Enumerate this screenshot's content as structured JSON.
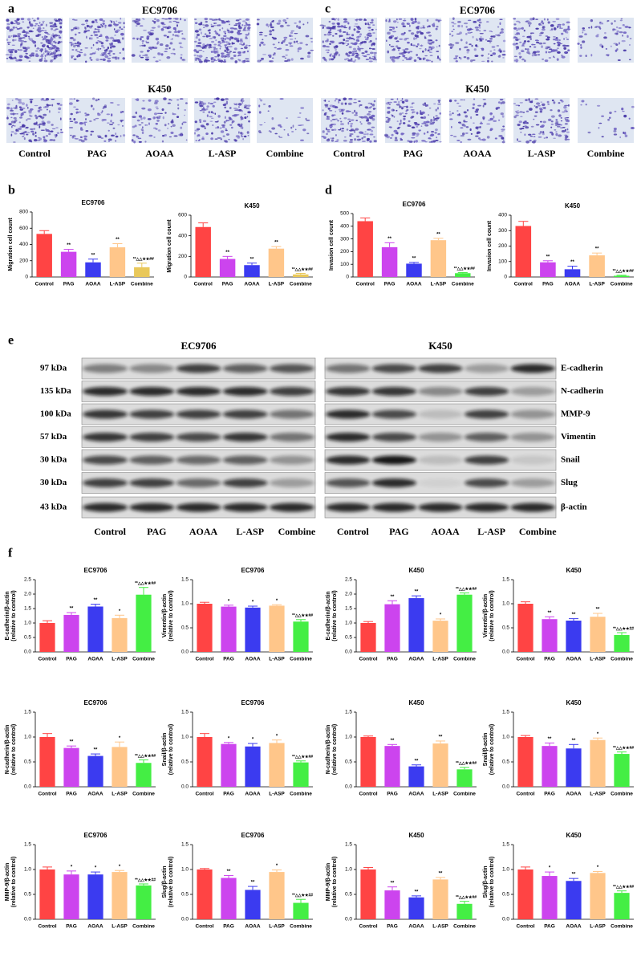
{
  "letters": [
    "a",
    "b",
    "c",
    "d",
    "e",
    "f"
  ],
  "image_panels": [
    {
      "titles": [
        "EC9706",
        "K450"
      ],
      "labels": [
        "Control",
        "PAG",
        "AOAA",
        "L-ASP",
        "Combine"
      ]
    },
    {
      "titles": [
        "EC9706",
        "K450"
      ],
      "labels": [
        "Control",
        "PAG",
        "AOAA",
        "L-ASP",
        "Combine"
      ]
    }
  ],
  "blot": {
    "titles": [
      "EC9706",
      "K450"
    ],
    "markers": [
      "97 kDa",
      "135 kDa",
      "100 kDa",
      "57 kDa",
      "30 kDa",
      "30 kDa",
      "43 kDa"
    ],
    "proteins": [
      "E-cadherin",
      "N-cadherin",
      "MMP-9",
      "Vimentin",
      "Snail",
      "Slug",
      "β-actin"
    ],
    "lanes": [
      [
        "Control",
        "PAG",
        "AOAA",
        "L-ASP",
        "Combine"
      ],
      [
        "Control",
        "PAG",
        "AOAA",
        "L-ASP",
        "Combine"
      ]
    ]
  },
  "chart_data": [
    {
      "type": "bar",
      "title": "EC9706",
      "ylabel": [
        "Migration cell count"
      ],
      "categories": [
        "Control",
        "PAG",
        "AOAA",
        "L-ASP",
        "Combine"
      ],
      "colors": [
        "#ff4444",
        "#cc44ee",
        "#3b3bf0",
        "#ffc68a",
        "#e9c85a"
      ],
      "values": [
        530,
        310,
        180,
        365,
        120
      ],
      "errors": [
        40,
        30,
        40,
        45,
        50
      ],
      "annotations": [
        null,
        "**",
        "**",
        "**",
        "**△△★★##"
      ],
      "ylim": [
        0,
        800
      ],
      "yticks": [
        0,
        200,
        400,
        600,
        800
      ]
    },
    {
      "type": "bar",
      "title": "K450",
      "ylabel": [
        "Migration cell count"
      ],
      "categories": [
        "Control",
        "PAG",
        "AOAA",
        "L-ASP",
        "Combine"
      ],
      "colors": [
        "#ff4444",
        "#cc44ee",
        "#3b3bf0",
        "#ffc68a",
        "#e9c85a"
      ],
      "values": [
        485,
        175,
        115,
        275,
        25
      ],
      "errors": [
        40,
        25,
        20,
        20,
        10
      ],
      "annotations": [
        null,
        "**",
        "**",
        "**",
        "**△△★★##"
      ],
      "ylim": [
        0,
        600
      ],
      "yticks": [
        0,
        200,
        400,
        600
      ]
    },
    {
      "type": "bar",
      "title": "EC9706",
      "ylabel": [
        "Invasion cell count"
      ],
      "categories": [
        "Control",
        "PAG",
        "AOAA",
        "L-ASP",
        "Combine"
      ],
      "colors": [
        "#ff4444",
        "#cc44ee",
        "#3b3bf0",
        "#ffc68a",
        "#44ee44"
      ],
      "values": [
        440,
        235,
        105,
        290,
        30
      ],
      "errors": [
        25,
        35,
        10,
        15,
        5
      ],
      "annotations": [
        null,
        "**",
        "**",
        "**",
        "**△△★★##"
      ],
      "ylim": [
        0,
        500
      ],
      "yticks": [
        0,
        100,
        200,
        300,
        400,
        500
      ]
    },
    {
      "type": "bar",
      "title": "K450",
      "ylabel": [
        "Invasion cell count"
      ],
      "categories": [
        "Control",
        "PAG",
        "AOAA",
        "L-ASP",
        "Combine"
      ],
      "colors": [
        "#ff4444",
        "#cc44ee",
        "#3b3bf0",
        "#ffc68a",
        "#44ee44"
      ],
      "values": [
        330,
        95,
        50,
        140,
        8
      ],
      "errors": [
        30,
        10,
        20,
        15,
        3
      ],
      "annotations": [
        null,
        "**",
        "**",
        "**",
        "**△△★★##"
      ],
      "ylim": [
        0,
        400
      ],
      "yticks": [
        0,
        100,
        200,
        300,
        400
      ]
    },
    {
      "type": "bar",
      "title": "EC9706",
      "ylabel": [
        "E-cadherin/β-actin",
        "(relative to control)"
      ],
      "categories": [
        "Control",
        "PAG",
        "AOAA",
        "L-ASP",
        "Combine"
      ],
      "colors": [
        "#ff4444",
        "#cc44ee",
        "#3b3bf0",
        "#ffc68a",
        "#44ee44"
      ],
      "values": [
        1.0,
        1.28,
        1.57,
        1.17,
        1.98
      ],
      "errors": [
        0.08,
        0.08,
        0.08,
        0.1,
        0.25
      ],
      "annotations": [
        null,
        "**",
        "**",
        "*",
        "**△△★★##"
      ],
      "ylim": [
        0,
        2.5
      ],
      "yticks": [
        {
          "value": 0,
          "label": "0.0"
        },
        0.5,
        {
          "value": 1,
          "label": "1.0"
        },
        1.5,
        {
          "value": 2,
          "label": "2.0"
        },
        2.5
      ]
    },
    {
      "type": "bar",
      "title": "EC9706",
      "ylabel": [
        "Vimentin/β-actin",
        "(relative to control)"
      ],
      "categories": [
        "Control",
        "PAG",
        "AOAA",
        "L-ASP",
        "Combine"
      ],
      "colors": [
        "#ff4444",
        "#cc44ee",
        "#3b3bf0",
        "#ffc68a",
        "#44ee44"
      ],
      "values": [
        1.0,
        0.94,
        0.92,
        0.96,
        0.63
      ],
      "errors": [
        0.03,
        0.03,
        0.03,
        0.02,
        0.04
      ],
      "annotations": [
        null,
        "*",
        "*",
        "*",
        "**△△★★##"
      ],
      "ylim": [
        0,
        1.5
      ],
      "yticks": [
        {
          "value": 0,
          "label": "0.0"
        },
        0.5,
        {
          "value": 1,
          "label": "1.0"
        },
        1.5
      ]
    },
    {
      "type": "bar",
      "title": "K450",
      "ylabel": [
        "E-cadherin/β-actin",
        "(relative to control)"
      ],
      "categories": [
        "Control",
        "PAG",
        "AOAA",
        "L-ASP",
        "Combine"
      ],
      "colors": [
        "#ff4444",
        "#cc44ee",
        "#3b3bf0",
        "#ffc68a",
        "#44ee44"
      ],
      "values": [
        1.0,
        1.65,
        1.86,
        1.08,
        1.98
      ],
      "errors": [
        0.05,
        0.12,
        0.08,
        0.06,
        0.06
      ],
      "annotations": [
        null,
        "**",
        "**",
        "*",
        "**△△★★##"
      ],
      "ylim": [
        0,
        2.5
      ],
      "yticks": [
        {
          "value": 0,
          "label": "0.0"
        },
        0.5,
        {
          "value": 1,
          "label": "1.0"
        },
        1.5,
        {
          "value": 2,
          "label": "2.0"
        },
        2.5
      ]
    },
    {
      "type": "bar",
      "title": "K450",
      "ylabel": [
        "Vimentin/β-actin",
        "(relative to control)"
      ],
      "categories": [
        "Control",
        "PAG",
        "AOAA",
        "L-ASP",
        "Combine"
      ],
      "colors": [
        "#ff4444",
        "#cc44ee",
        "#3b3bf0",
        "#ffc68a",
        "#44ee44"
      ],
      "values": [
        1.0,
        0.68,
        0.65,
        0.73,
        0.35
      ],
      "errors": [
        0.04,
        0.05,
        0.04,
        0.07,
        0.05
      ],
      "annotations": [
        null,
        "**",
        "**",
        "**",
        "**△△★★##"
      ],
      "ylim": [
        0,
        1.5
      ],
      "yticks": [
        {
          "value": 0,
          "label": "0.0"
        },
        0.5,
        {
          "value": 1,
          "label": "1.0"
        },
        1.5
      ]
    },
    {
      "type": "bar",
      "title": "EC9706",
      "ylabel": [
        "N-cadherin/β-actin",
        "(relative to control)"
      ],
      "categories": [
        "Control",
        "PAG",
        "AOAA",
        "L-ASP",
        "Combine"
      ],
      "colors": [
        "#ff4444",
        "#cc44ee",
        "#3b3bf0",
        "#ffc68a",
        "#44ee44"
      ],
      "values": [
        1.0,
        0.78,
        0.62,
        0.8,
        0.48
      ],
      "errors": [
        0.07,
        0.04,
        0.04,
        0.1,
        0.06
      ],
      "annotations": [
        null,
        "**",
        "**",
        "*",
        "**△△★★##"
      ],
      "ylim": [
        0,
        1.5
      ],
      "yticks": [
        {
          "value": 0,
          "label": "0.0"
        },
        0.5,
        {
          "value": 1,
          "label": "1.0"
        },
        1.5
      ]
    },
    {
      "type": "bar",
      "title": "EC9706",
      "ylabel": [
        "Snail/β-actin",
        "(relative to control)"
      ],
      "categories": [
        "Control",
        "PAG",
        "AOAA",
        "L-ASP",
        "Combine"
      ],
      "colors": [
        "#ff4444",
        "#cc44ee",
        "#3b3bf0",
        "#ffc68a",
        "#44ee44"
      ],
      "values": [
        1.0,
        0.86,
        0.81,
        0.88,
        0.49
      ],
      "errors": [
        0.07,
        0.03,
        0.06,
        0.06,
        0.03
      ],
      "annotations": [
        null,
        "*",
        "*",
        "*",
        "**△△★★##"
      ],
      "ylim": [
        0,
        1.5
      ],
      "yticks": [
        {
          "value": 0,
          "label": "0.0"
        },
        0.5,
        {
          "value": 1,
          "label": "1.0"
        },
        1.5
      ]
    },
    {
      "type": "bar",
      "title": "K450",
      "ylabel": [
        "N-cadherin/β-actin",
        "(relative to control)"
      ],
      "categories": [
        "Control",
        "PAG",
        "AOAA",
        "L-ASP",
        "Combine"
      ],
      "colors": [
        "#ff4444",
        "#cc44ee",
        "#3b3bf0",
        "#ffc68a",
        "#44ee44"
      ],
      "values": [
        1.0,
        0.82,
        0.41,
        0.87,
        0.35
      ],
      "errors": [
        0.02,
        0.03,
        0.03,
        0.05,
        0.04
      ],
      "annotations": [
        null,
        "**",
        "**",
        "**",
        "**△△★★##"
      ],
      "ylim": [
        0,
        1.5
      ],
      "yticks": [
        {
          "value": 0,
          "label": "0.0"
        },
        0.5,
        {
          "value": 1,
          "label": "1.0"
        },
        1.5
      ]
    },
    {
      "type": "bar",
      "title": "K450",
      "ylabel": [
        "Snail/β-actin",
        "(relative to control)"
      ],
      "categories": [
        "Control",
        "PAG",
        "AOAA",
        "L-ASP",
        "Combine"
      ],
      "colors": [
        "#ff4444",
        "#cc44ee",
        "#3b3bf0",
        "#ffc68a",
        "#44ee44"
      ],
      "values": [
        1.0,
        0.82,
        0.77,
        0.94,
        0.66
      ],
      "errors": [
        0.03,
        0.06,
        0.08,
        0.04,
        0.04
      ],
      "annotations": [
        null,
        "**",
        "**",
        "*",
        "**△△★★##"
      ],
      "ylim": [
        0,
        1.5
      ],
      "yticks": [
        {
          "value": 0,
          "label": "0.0"
        },
        0.5,
        {
          "value": 1,
          "label": "1.0"
        },
        1.5
      ]
    },
    {
      "type": "bar",
      "title": "EC9706",
      "ylabel": [
        "MMP-9/β-actin",
        "(relative to control)"
      ],
      "categories": [
        "Control",
        "PAG",
        "AOAA",
        "L-ASP",
        "Combine"
      ],
      "colors": [
        "#ff4444",
        "#cc44ee",
        "#3b3bf0",
        "#ffc68a",
        "#44ee44"
      ],
      "values": [
        1.0,
        0.9,
        0.9,
        0.95,
        0.68
      ],
      "errors": [
        0.05,
        0.07,
        0.05,
        0.03,
        0.03
      ],
      "annotations": [
        null,
        "*",
        "*",
        "*",
        "**△△★★##"
      ],
      "ylim": [
        0,
        1.5
      ],
      "yticks": [
        {
          "value": 0,
          "label": "0.0"
        },
        0.5,
        {
          "value": 1,
          "label": "1.0"
        },
        1.5
      ]
    },
    {
      "type": "bar",
      "title": "EC9706",
      "ylabel": [
        "Slug/β-actin",
        "(relative to control)"
      ],
      "categories": [
        "Control",
        "PAG",
        "AOAA",
        "L-ASP",
        "Combine"
      ],
      "colors": [
        "#ff4444",
        "#cc44ee",
        "#3b3bf0",
        "#ffc68a",
        "#44ee44"
      ],
      "values": [
        1.0,
        0.83,
        0.59,
        0.95,
        0.33
      ],
      "errors": [
        0.02,
        0.05,
        0.07,
        0.04,
        0.07
      ],
      "annotations": [
        null,
        "**",
        "**",
        "*",
        "**△△★★##"
      ],
      "ylim": [
        0,
        1.5
      ],
      "yticks": [
        {
          "value": 0,
          "label": "0.0"
        },
        0.5,
        {
          "value": 1,
          "label": "1.0"
        },
        1.5
      ]
    },
    {
      "type": "bar",
      "title": "K450",
      "ylabel": [
        "MMP-9/β-actin",
        "(relative to control)"
      ],
      "categories": [
        "Control",
        "PAG",
        "AOAA",
        "L-ASP",
        "Combine"
      ],
      "colors": [
        "#ff4444",
        "#cc44ee",
        "#3b3bf0",
        "#ffc68a",
        "#44ee44"
      ],
      "values": [
        1.0,
        0.58,
        0.44,
        0.8,
        0.31
      ],
      "errors": [
        0.04,
        0.07,
        0.03,
        0.04,
        0.05
      ],
      "annotations": [
        null,
        "**",
        "**",
        "**",
        "**△△★★##"
      ],
      "ylim": [
        0,
        1.5
      ],
      "yticks": [
        {
          "value": 0,
          "label": "0.0"
        },
        0.5,
        {
          "value": 1,
          "label": "1.0"
        },
        1.5
      ]
    },
    {
      "type": "bar",
      "title": "K450",
      "ylabel": [
        "Slug/β-actin",
        "(relative to control)"
      ],
      "categories": [
        "Control",
        "PAG",
        "AOAA",
        "L-ASP",
        "Combine"
      ],
      "colors": [
        "#ff4444",
        "#cc44ee",
        "#3b3bf0",
        "#ffc68a",
        "#44ee44"
      ],
      "values": [
        1.0,
        0.87,
        0.77,
        0.93,
        0.53
      ],
      "errors": [
        0.05,
        0.08,
        0.05,
        0.03,
        0.04
      ],
      "annotations": [
        null,
        "*",
        "**",
        "*",
        "**△△★★##"
      ],
      "ylim": [
        0,
        1.5
      ],
      "yticks": [
        {
          "value": 0,
          "label": "0.0"
        },
        0.5,
        {
          "value": 1,
          "label": "1.0"
        },
        1.5
      ]
    }
  ]
}
